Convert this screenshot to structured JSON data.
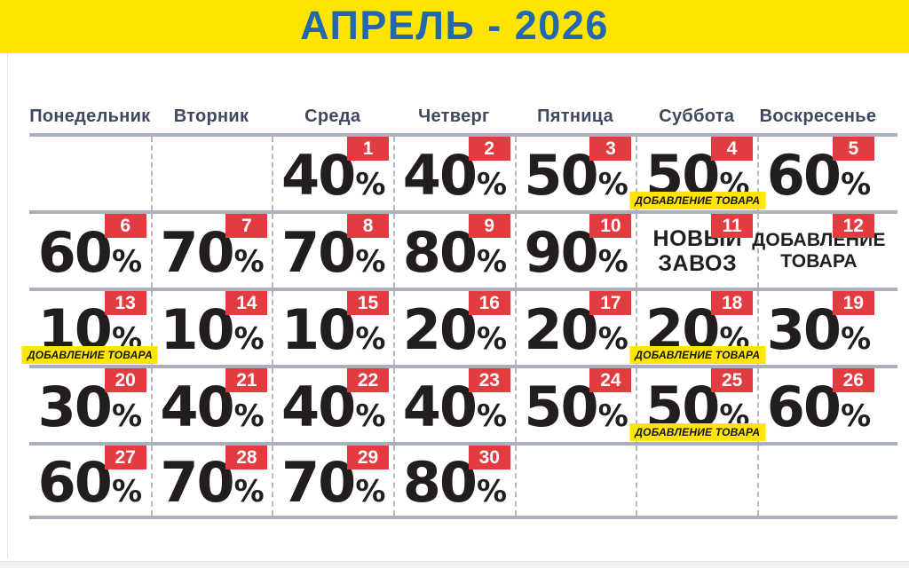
{
  "header": {
    "title": "АПРЕЛЬ - 2026"
  },
  "colors": {
    "banner_yellow": "#FFE500",
    "title_blue": "#2368AE",
    "weekday_navy": "#3E4960",
    "grid_line": "#A9B0BC",
    "dash_line": "#B4BAC5",
    "badge_red": "#E23B40",
    "badge_text": "#FFFFFF",
    "percent_black": "#221E1F",
    "label_yellow": "#FFE500",
    "label_text": "#141414"
  },
  "weekdays": [
    "Понедельник",
    "Вторник",
    "Среда",
    "Четверг",
    "Пятница",
    "Суббота",
    "Воскресенье"
  ],
  "weeks": [
    [
      {},
      {},
      {
        "day": "1",
        "percent": "40",
        "unit": "%"
      },
      {
        "day": "2",
        "percent": "40",
        "unit": "%"
      },
      {
        "day": "3",
        "percent": "50",
        "unit": "%"
      },
      {
        "day": "4",
        "percent": "50",
        "unit": "%",
        "label": "ДОБАВЛЕНИЕ ТОВАРА"
      },
      {
        "day": "5",
        "percent": "60",
        "unit": "%"
      }
    ],
    [
      {
        "day": "6",
        "percent": "60",
        "unit": "%"
      },
      {
        "day": "7",
        "percent": "70",
        "unit": "%"
      },
      {
        "day": "8",
        "percent": "70",
        "unit": "%"
      },
      {
        "day": "9",
        "percent": "80",
        "unit": "%"
      },
      {
        "day": "10",
        "percent": "90",
        "unit": "%"
      },
      {
        "day": "11",
        "lines": [
          "НОВЫЙ",
          "ЗАВОЗ"
        ]
      },
      {
        "day": "12",
        "lines": [
          "ДОБАВЛЕНИЕ",
          "ТОВАРА"
        ]
      }
    ],
    [
      {
        "day": "13",
        "percent": "10",
        "unit": "%",
        "label": "ДОБАВЛЕНИЕ ТОВАРА"
      },
      {
        "day": "14",
        "percent": "10",
        "unit": "%"
      },
      {
        "day": "15",
        "percent": "10",
        "unit": "%"
      },
      {
        "day": "16",
        "percent": "20",
        "unit": "%"
      },
      {
        "day": "17",
        "percent": "20",
        "unit": "%"
      },
      {
        "day": "18",
        "percent": "20",
        "unit": "%",
        "label": "ДОБАВЛЕНИЕ ТОВАРА"
      },
      {
        "day": "19",
        "percent": "30",
        "unit": "%"
      }
    ],
    [
      {
        "day": "20",
        "percent": "30",
        "unit": "%"
      },
      {
        "day": "21",
        "percent": "40",
        "unit": "%"
      },
      {
        "day": "22",
        "percent": "40",
        "unit": "%"
      },
      {
        "day": "23",
        "percent": "40",
        "unit": "%"
      },
      {
        "day": "24",
        "percent": "50",
        "unit": "%"
      },
      {
        "day": "25",
        "percent": "50",
        "unit": "%",
        "label": "ДОБАВЛЕНИЕ ТОВАРА"
      },
      {
        "day": "26",
        "percent": "60",
        "unit": "%"
      }
    ],
    [
      {
        "day": "27",
        "percent": "60",
        "unit": "%"
      },
      {
        "day": "28",
        "percent": "70",
        "unit": "%"
      },
      {
        "day": "29",
        "percent": "70",
        "unit": "%"
      },
      {
        "day": "30",
        "percent": "80",
        "unit": "%"
      },
      {},
      {},
      {}
    ]
  ]
}
